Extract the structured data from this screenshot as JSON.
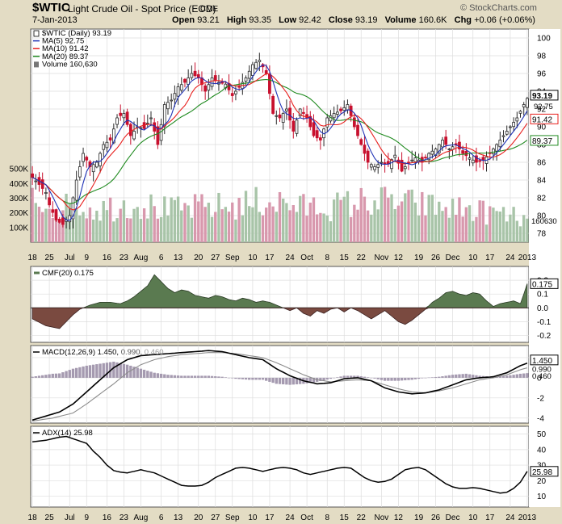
{
  "header": {
    "symbol": "$WTIC",
    "description": "Light Crude Oil - Spot Price (EOD)",
    "exchange": "CME",
    "watermark": "© StockCharts.com",
    "date": "7-Jan-2013",
    "open_label": "Open",
    "open": "93.21",
    "high_label": "High",
    "high": "93.35",
    "low_label": "Low",
    "low": "92.42",
    "close_label": "Close",
    "close": "93.19",
    "volume_label": "Volume",
    "volume": "160.6K",
    "chg_label": "Chg",
    "chg": "+0.06 (+0.06%)"
  },
  "colors": {
    "up": "#2a2a2a",
    "down": "#c8102e",
    "ma5": "#1f32b5",
    "ma10": "#e8201e",
    "ma20": "#1f8a1f",
    "vol_up": "#a8c4a8",
    "vol_down": "#d898ad",
    "cmf_pos": "#5a7a50",
    "cmf_neg": "#7a4a40",
    "macd_hist": "#a59ab0",
    "panel_bg": "#ffffff",
    "grid": "#dddddd"
  },
  "chart_data": [
    {
      "type": "candlestick",
      "panel": "price",
      "legend": [
        {
          "label": "$WTIC (Daily) 93.19"
        },
        {
          "label": "MA(5) 92.75"
        },
        {
          "label": "MA(10) 91.42"
        },
        {
          "label": "MA(20) 89.37"
        },
        {
          "label": "Volume 160,630"
        }
      ],
      "y_ticks": [
        "100",
        "98",
        "96",
        "94",
        "92",
        "90",
        "88",
        "86",
        "84",
        "82",
        "80",
        "78"
      ],
      "ylim": [
        77,
        101
      ],
      "volume_ticks": [
        "500K",
        "400K",
        "300K",
        "200K",
        "100K"
      ],
      "volume_max": 550000,
      "last_labels": {
        "close": "93.19",
        "ma5": "92.75",
        "ma10": "91.42",
        "ma20": "89.37",
        "volume": "160630"
      },
      "x_tick_labels": [
        "18",
        "25",
        "Jul",
        "9",
        "16",
        "23",
        "Aug",
        "6",
        "13",
        "20",
        "27",
        "Sep",
        "10",
        "17",
        "24",
        "Oct",
        "8",
        "15",
        "22",
        "Nov",
        "12",
        "19",
        "26",
        "Dec",
        "10",
        "17",
        "24",
        "2013"
      ],
      "close_anchors": [
        [
          0,
          84.3
        ],
        [
          2,
          83.5
        ],
        [
          4,
          82.6
        ],
        [
          5,
          81.2
        ],
        [
          7,
          79.5
        ],
        [
          9,
          79.0
        ],
        [
          11,
          80.0
        ],
        [
          13,
          84.0
        ],
        [
          15,
          87.0
        ],
        [
          17,
          85.5
        ],
        [
          19,
          86.0
        ],
        [
          21,
          88.0
        ],
        [
          23,
          88.5
        ],
        [
          25,
          91.0
        ],
        [
          27,
          91.5
        ],
        [
          29,
          89.0
        ],
        [
          31,
          90.0
        ],
        [
          33,
          89.8
        ],
        [
          35,
          91.0
        ],
        [
          37,
          88.0
        ],
        [
          39,
          92.5
        ],
        [
          41,
          93.0
        ],
        [
          43,
          94.5
        ],
        [
          45,
          95.0
        ],
        [
          47,
          96.0
        ],
        [
          49,
          95.5
        ],
        [
          51,
          94.0
        ],
        [
          53,
          95.5
        ],
        [
          55,
          95.0
        ],
        [
          57,
          94.8
        ],
        [
          59,
          93.5
        ],
        [
          61,
          94.5
        ],
        [
          63,
          95.5
        ],
        [
          65,
          97.0
        ],
        [
          67,
          97.5
        ],
        [
          69,
          96.0
        ],
        [
          71,
          91.5
        ],
        [
          73,
          91.0
        ],
        [
          75,
          92.0
        ],
        [
          77,
          89.5
        ],
        [
          79,
          92.0
        ],
        [
          81,
          91.0
        ],
        [
          83,
          89.0
        ],
        [
          85,
          88.5
        ],
        [
          87,
          91.0
        ],
        [
          89,
          91.5
        ],
        [
          91,
          91.8
        ],
        [
          93,
          92.5
        ],
        [
          95,
          90.0
        ],
        [
          97,
          88.0
        ],
        [
          99,
          86.0
        ],
        [
          101,
          85.5
        ],
        [
          103,
          86.0
        ],
        [
          105,
          85.8
        ],
        [
          107,
          86.8
        ],
        [
          109,
          85.0
        ],
        [
          111,
          86.0
        ],
        [
          113,
          86.5
        ],
        [
          115,
          86.0
        ],
        [
          117,
          87.0
        ],
        [
          119,
          87.5
        ],
        [
          121,
          88.5
        ],
        [
          123,
          87.5
        ],
        [
          125,
          88.0
        ],
        [
          127,
          87.0
        ],
        [
          129,
          86.5
        ],
        [
          131,
          86.0
        ],
        [
          133,
          86.2
        ],
        [
          135,
          87.0
        ],
        [
          137,
          88.0
        ],
        [
          139,
          89.0
        ],
        [
          141,
          90.0
        ],
        [
          143,
          91.0
        ],
        [
          145,
          92.5
        ],
        [
          146,
          93.19
        ]
      ],
      "volume_anchors": [
        [
          0,
          300000
        ],
        [
          10,
          250000
        ],
        [
          20,
          240000
        ],
        [
          30,
          280000
        ],
        [
          40,
          230000
        ],
        [
          50,
          250000
        ],
        [
          60,
          260000
        ],
        [
          70,
          300000
        ],
        [
          80,
          250000
        ],
        [
          90,
          260000
        ],
        [
          100,
          300000
        ],
        [
          110,
          280000
        ],
        [
          120,
          250000
        ],
        [
          130,
          230000
        ],
        [
          140,
          190000
        ],
        [
          146,
          160630
        ]
      ]
    },
    {
      "type": "area",
      "panel": "cmf",
      "legend": "CMF(20) 0.175",
      "y_ticks": [
        "0.2",
        "0.1",
        "0.0",
        "-0.1",
        "-0.2"
      ],
      "ylim": [
        -0.25,
        0.3
      ],
      "last_value": "0.175",
      "anchors": [
        [
          0,
          -0.08
        ],
        [
          4,
          -0.13
        ],
        [
          8,
          -0.15
        ],
        [
          12,
          -0.05
        ],
        [
          14,
          -0.01
        ],
        [
          17,
          0.02
        ],
        [
          20,
          0.04
        ],
        [
          23,
          0.04
        ],
        [
          26,
          0.03
        ],
        [
          28,
          0.05
        ],
        [
          30,
          0.08
        ],
        [
          32,
          0.12
        ],
        [
          34,
          0.16
        ],
        [
          36,
          0.24
        ],
        [
          38,
          0.19
        ],
        [
          40,
          0.14
        ],
        [
          42,
          0.11
        ],
        [
          44,
          0.13
        ],
        [
          46,
          0.12
        ],
        [
          48,
          0.09
        ],
        [
          50,
          0.08
        ],
        [
          52,
          0.07
        ],
        [
          54,
          0.09
        ],
        [
          56,
          0.08
        ],
        [
          58,
          0.06
        ],
        [
          60,
          0.05
        ],
        [
          62,
          0.07
        ],
        [
          64,
          0.06
        ],
        [
          66,
          0.04
        ],
        [
          68,
          0.05
        ],
        [
          70,
          0.04
        ],
        [
          72,
          0.02
        ],
        [
          74,
          0.0
        ],
        [
          76,
          -0.02
        ],
        [
          78,
          0.0
        ],
        [
          80,
          -0.04
        ],
        [
          82,
          -0.06
        ],
        [
          84,
          -0.02
        ],
        [
          86,
          -0.04
        ],
        [
          88,
          -0.01
        ],
        [
          90,
          0.0
        ],
        [
          92,
          -0.03
        ],
        [
          94,
          0.0
        ],
        [
          96,
          -0.02
        ],
        [
          98,
          -0.05
        ],
        [
          100,
          -0.08
        ],
        [
          102,
          -0.05
        ],
        [
          104,
          -0.02
        ],
        [
          106,
          -0.06
        ],
        [
          108,
          -0.1
        ],
        [
          110,
          -0.12
        ],
        [
          112,
          -0.09
        ],
        [
          114,
          -0.05
        ],
        [
          116,
          -0.01
        ],
        [
          118,
          0.04
        ],
        [
          120,
          0.07
        ],
        [
          122,
          0.11
        ],
        [
          124,
          0.12
        ],
        [
          126,
          0.1
        ],
        [
          128,
          0.09
        ],
        [
          130,
          0.11
        ],
        [
          132,
          0.1
        ],
        [
          134,
          0.05
        ],
        [
          136,
          0.01
        ],
        [
          138,
          0.03
        ],
        [
          140,
          0.04
        ],
        [
          142,
          0.05
        ],
        [
          144,
          0.03
        ],
        [
          145,
          0.1
        ],
        [
          146,
          0.175
        ]
      ]
    },
    {
      "type": "line",
      "panel": "macd",
      "legend_parts": [
        "MACD(12,26,9)",
        "1.450,",
        "0.990,",
        "0.460"
      ],
      "y_ticks": [
        "2",
        "0",
        "-2",
        "-4"
      ],
      "ylim": [
        -4.5,
        3.2
      ],
      "last_labels": {
        "macd": "1.450",
        "signal": "0.990",
        "hist": "0.460"
      },
      "macd_anchors": [
        [
          0,
          -4.2
        ],
        [
          4,
          -3.8
        ],
        [
          8,
          -3.4
        ],
        [
          12,
          -2.6
        ],
        [
          16,
          -1.4
        ],
        [
          20,
          -0.2
        ],
        [
          24,
          1.0
        ],
        [
          28,
          1.8
        ],
        [
          32,
          2.2
        ],
        [
          36,
          2.3
        ],
        [
          40,
          2.4
        ],
        [
          44,
          2.5
        ],
        [
          48,
          2.6
        ],
        [
          52,
          2.7
        ],
        [
          56,
          2.6
        ],
        [
          60,
          2.3
        ],
        [
          64,
          2.0
        ],
        [
          68,
          1.8
        ],
        [
          72,
          0.9
        ],
        [
          76,
          0.2
        ],
        [
          80,
          -0.3
        ],
        [
          84,
          -0.6
        ],
        [
          88,
          -0.5
        ],
        [
          92,
          -0.1
        ],
        [
          96,
          0.0
        ],
        [
          100,
          -0.3
        ],
        [
          104,
          -1.0
        ],
        [
          108,
          -1.4
        ],
        [
          112,
          -1.6
        ],
        [
          116,
          -1.5
        ],
        [
          120,
          -1.2
        ],
        [
          124,
          -0.7
        ],
        [
          128,
          -0.2
        ],
        [
          132,
          0.0
        ],
        [
          136,
          0.1
        ],
        [
          140,
          0.5
        ],
        [
          144,
          1.2
        ],
        [
          146,
          1.45
        ]
      ],
      "signal_anchors": [
        [
          0,
          -4.3
        ],
        [
          6,
          -4.0
        ],
        [
          12,
          -3.5
        ],
        [
          16,
          -2.6
        ],
        [
          20,
          -1.6
        ],
        [
          24,
          -0.6
        ],
        [
          28,
          0.5
        ],
        [
          32,
          1.3
        ],
        [
          36,
          1.8
        ],
        [
          40,
          2.1
        ],
        [
          44,
          2.3
        ],
        [
          48,
          2.4
        ],
        [
          52,
          2.5
        ],
        [
          56,
          2.5
        ],
        [
          60,
          2.4
        ],
        [
          64,
          2.2
        ],
        [
          68,
          2.0
        ],
        [
          72,
          1.5
        ],
        [
          76,
          0.9
        ],
        [
          80,
          0.3
        ],
        [
          84,
          -0.2
        ],
        [
          88,
          -0.4
        ],
        [
          92,
          -0.3
        ],
        [
          96,
          -0.2
        ],
        [
          100,
          -0.3
        ],
        [
          104,
          -0.7
        ],
        [
          108,
          -1.1
        ],
        [
          112,
          -1.4
        ],
        [
          116,
          -1.5
        ],
        [
          120,
          -1.3
        ],
        [
          124,
          -1.0
        ],
        [
          128,
          -0.6
        ],
        [
          132,
          -0.2
        ],
        [
          136,
          0.0
        ],
        [
          140,
          0.3
        ],
        [
          144,
          0.8
        ],
        [
          146,
          0.99
        ]
      ]
    },
    {
      "type": "line",
      "panel": "adx",
      "legend": "ADX(14) 25.98",
      "y_ticks": [
        "50",
        "40",
        "30",
        "20",
        "10"
      ],
      "ylim": [
        3,
        55
      ],
      "last_value": "25.98",
      "anchors": [
        [
          0,
          45
        ],
        [
          4,
          46
        ],
        [
          8,
          48
        ],
        [
          10,
          48.5
        ],
        [
          12,
          47
        ],
        [
          14,
          45.5
        ],
        [
          16,
          44
        ],
        [
          18,
          39
        ],
        [
          20,
          35
        ],
        [
          22,
          30
        ],
        [
          24,
          26.5
        ],
        [
          26,
          25.5
        ],
        [
          28,
          25
        ],
        [
          30,
          26
        ],
        [
          32,
          27
        ],
        [
          34,
          26
        ],
        [
          36,
          25
        ],
        [
          38,
          23
        ],
        [
          40,
          21
        ],
        [
          42,
          19
        ],
        [
          44,
          17
        ],
        [
          46,
          16.5
        ],
        [
          48,
          16.5
        ],
        [
          50,
          17
        ],
        [
          52,
          19
        ],
        [
          54,
          22
        ],
        [
          56,
          24
        ],
        [
          58,
          26
        ],
        [
          60,
          28
        ],
        [
          62,
          28.5
        ],
        [
          64,
          28
        ],
        [
          66,
          27
        ],
        [
          68,
          26
        ],
        [
          70,
          27
        ],
        [
          72,
          28
        ],
        [
          74,
          28.5
        ],
        [
          76,
          28
        ],
        [
          78,
          27
        ],
        [
          80,
          25
        ],
        [
          82,
          24
        ],
        [
          84,
          25
        ],
        [
          86,
          26
        ],
        [
          88,
          27
        ],
        [
          90,
          28
        ],
        [
          92,
          28.5
        ],
        [
          94,
          28
        ],
        [
          96,
          25
        ],
        [
          98,
          22
        ],
        [
          100,
          20
        ],
        [
          102,
          19
        ],
        [
          104,
          19.5
        ],
        [
          106,
          21
        ],
        [
          108,
          24
        ],
        [
          110,
          27
        ],
        [
          112,
          28
        ],
        [
          114,
          28.5
        ],
        [
          116,
          27
        ],
        [
          118,
          24
        ],
        [
          120,
          21
        ],
        [
          122,
          18
        ],
        [
          124,
          16
        ],
        [
          126,
          15
        ],
        [
          128,
          15
        ],
        [
          130,
          15.5
        ],
        [
          132,
          15
        ],
        [
          134,
          14
        ],
        [
          136,
          13
        ],
        [
          138,
          12
        ],
        [
          140,
          12.5
        ],
        [
          142,
          15
        ],
        [
          144,
          19
        ],
        [
          146,
          25.98
        ]
      ]
    }
  ]
}
